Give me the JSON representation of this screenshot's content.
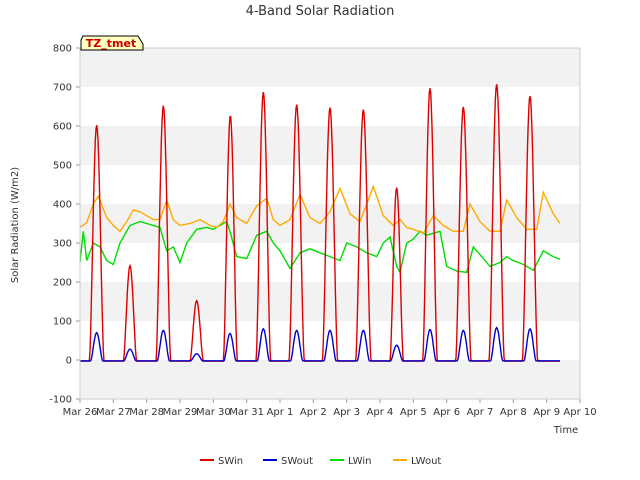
{
  "chart_data": {
    "type": "line",
    "title": "4-Band Solar Radiation",
    "xlabel": "Time",
    "ylabel": "Solar Radiation (W/m2)",
    "ylim": [
      -100,
      800
    ],
    "xlim": [
      0,
      15
    ],
    "yticks": [
      -100,
      0,
      100,
      200,
      300,
      400,
      500,
      600,
      700,
      800
    ],
    "xtick_labels": [
      "Mar 26",
      "Mar 27",
      "Mar 28",
      "Mar 29",
      "Mar 30",
      "Mar 31",
      "Apr 1",
      "Apr 2",
      "Apr 3",
      "Apr 4",
      "Apr 5",
      "Apr 6",
      "Apr 7",
      "Apr 8",
      "Apr 9",
      "Apr 10"
    ],
    "grid": "horizontal bands",
    "legend_position": "bottom",
    "annotation": "TZ_tmet",
    "series": [
      {
        "name": "SWin",
        "color": "#dd0000",
        "days": [
          {
            "day": 0,
            "peak": 605,
            "start": 0.28,
            "end": 0.72
          },
          {
            "day": 1,
            "peak": 245,
            "start": 0.3,
            "end": 0.7
          },
          {
            "day": 2,
            "peak": 655,
            "start": 0.28,
            "end": 0.72
          },
          {
            "day": 3,
            "peak": 155,
            "start": 0.3,
            "end": 0.7
          },
          {
            "day": 4,
            "peak": 630,
            "start": 0.3,
            "end": 0.72
          },
          {
            "day": 5,
            "peak": 690,
            "start": 0.28,
            "end": 0.72
          },
          {
            "day": 6,
            "peak": 658,
            "start": 0.27,
            "end": 0.73
          },
          {
            "day": 7,
            "peak": 650,
            "start": 0.27,
            "end": 0.73
          },
          {
            "day": 8,
            "peak": 645,
            "start": 0.27,
            "end": 0.73
          },
          {
            "day": 9,
            "peak": 445,
            "start": 0.3,
            "end": 0.7
          },
          {
            "day": 10,
            "peak": 700,
            "start": 0.28,
            "end": 0.72
          },
          {
            "day": 11,
            "peak": 652,
            "start": 0.27,
            "end": 0.73
          },
          {
            "day": 12,
            "peak": 710,
            "start": 0.27,
            "end": 0.73
          },
          {
            "day": 13,
            "peak": 680,
            "start": 0.27,
            "end": 0.73
          }
        ]
      },
      {
        "name": "SWout",
        "color": "#0000cc",
        "days": [
          {
            "day": 0,
            "peak": 72
          },
          {
            "day": 1,
            "peak": 30
          },
          {
            "day": 2,
            "peak": 78
          },
          {
            "day": 3,
            "peak": 18
          },
          {
            "day": 4,
            "peak": 70
          },
          {
            "day": 5,
            "peak": 82
          },
          {
            "day": 6,
            "peak": 78
          },
          {
            "day": 7,
            "peak": 78
          },
          {
            "day": 8,
            "peak": 78
          },
          {
            "day": 9,
            "peak": 40
          },
          {
            "day": 10,
            "peak": 80
          },
          {
            "day": 11,
            "peak": 78
          },
          {
            "day": 12,
            "peak": 85
          },
          {
            "day": 13,
            "peak": 82
          }
        ]
      },
      {
        "name": "LWin",
        "color": "#00dd00",
        "points": [
          [
            0.0,
            250
          ],
          [
            0.1,
            330
          ],
          [
            0.2,
            255
          ],
          [
            0.4,
            300
          ],
          [
            0.6,
            290
          ],
          [
            0.8,
            255
          ],
          [
            1.0,
            245
          ],
          [
            1.2,
            300
          ],
          [
            1.5,
            345
          ],
          [
            1.8,
            355
          ],
          [
            2.0,
            350
          ],
          [
            2.2,
            345
          ],
          [
            2.4,
            340
          ],
          [
            2.6,
            280
          ],
          [
            2.8,
            290
          ],
          [
            3.0,
            250
          ],
          [
            3.2,
            300
          ],
          [
            3.5,
            335
          ],
          [
            3.8,
            340
          ],
          [
            4.0,
            335
          ],
          [
            4.2,
            345
          ],
          [
            4.4,
            355
          ],
          [
            4.5,
            330
          ],
          [
            4.7,
            265
          ],
          [
            5.0,
            260
          ],
          [
            5.3,
            320
          ],
          [
            5.6,
            330
          ],
          [
            5.8,
            300
          ],
          [
            6.0,
            280
          ],
          [
            6.3,
            235
          ],
          [
            6.6,
            275
          ],
          [
            6.9,
            285
          ],
          [
            7.2,
            275
          ],
          [
            7.5,
            265
          ],
          [
            7.8,
            255
          ],
          [
            8.0,
            300
          ],
          [
            8.3,
            290
          ],
          [
            8.6,
            275
          ],
          [
            8.9,
            265
          ],
          [
            9.1,
            300
          ],
          [
            9.3,
            315
          ],
          [
            9.5,
            240
          ],
          [
            9.6,
            225
          ],
          [
            9.8,
            300
          ],
          [
            10.0,
            310
          ],
          [
            10.2,
            330
          ],
          [
            10.4,
            320
          ],
          [
            10.6,
            325
          ],
          [
            10.8,
            330
          ],
          [
            11.0,
            240
          ],
          [
            11.3,
            228
          ],
          [
            11.6,
            225
          ],
          [
            11.8,
            290
          ],
          [
            12.0,
            270
          ],
          [
            12.3,
            240
          ],
          [
            12.6,
            250
          ],
          [
            12.8,
            265
          ],
          [
            13.0,
            255
          ],
          [
            13.3,
            245
          ],
          [
            13.6,
            230
          ],
          [
            13.9,
            280
          ],
          [
            14.2,
            265
          ],
          [
            14.4,
            258
          ]
        ]
      },
      {
        "name": "LWout",
        "color": "#ffaa00",
        "points": [
          [
            0.0,
            340
          ],
          [
            0.2,
            352
          ],
          [
            0.4,
            400
          ],
          [
            0.55,
            420
          ],
          [
            0.8,
            365
          ],
          [
            1.0,
            345
          ],
          [
            1.2,
            330
          ],
          [
            1.4,
            355
          ],
          [
            1.6,
            385
          ],
          [
            1.8,
            380
          ],
          [
            2.0,
            370
          ],
          [
            2.2,
            360
          ],
          [
            2.4,
            360
          ],
          [
            2.6,
            410
          ],
          [
            2.8,
            360
          ],
          [
            3.0,
            345
          ],
          [
            3.3,
            350
          ],
          [
            3.6,
            360
          ],
          [
            3.9,
            345
          ],
          [
            4.1,
            340
          ],
          [
            4.3,
            355
          ],
          [
            4.5,
            400
          ],
          [
            4.7,
            365
          ],
          [
            5.0,
            350
          ],
          [
            5.3,
            395
          ],
          [
            5.6,
            415
          ],
          [
            5.8,
            360
          ],
          [
            6.0,
            345
          ],
          [
            6.3,
            360
          ],
          [
            6.6,
            425
          ],
          [
            6.9,
            365
          ],
          [
            7.2,
            350
          ],
          [
            7.5,
            380
          ],
          [
            7.8,
            440
          ],
          [
            8.1,
            375
          ],
          [
            8.4,
            355
          ],
          [
            8.8,
            445
          ],
          [
            9.1,
            370
          ],
          [
            9.4,
            345
          ],
          [
            9.6,
            360
          ],
          [
            9.8,
            340
          ],
          [
            10.0,
            335
          ],
          [
            10.3,
            325
          ],
          [
            10.6,
            370
          ],
          [
            10.9,
            345
          ],
          [
            11.2,
            330
          ],
          [
            11.5,
            330
          ],
          [
            11.7,
            400
          ],
          [
            12.0,
            355
          ],
          [
            12.3,
            330
          ],
          [
            12.6,
            330
          ],
          [
            12.8,
            410
          ],
          [
            13.1,
            365
          ],
          [
            13.4,
            335
          ],
          [
            13.7,
            335
          ],
          [
            13.9,
            430
          ],
          [
            14.2,
            375
          ],
          [
            14.4,
            350
          ]
        ]
      }
    ]
  }
}
